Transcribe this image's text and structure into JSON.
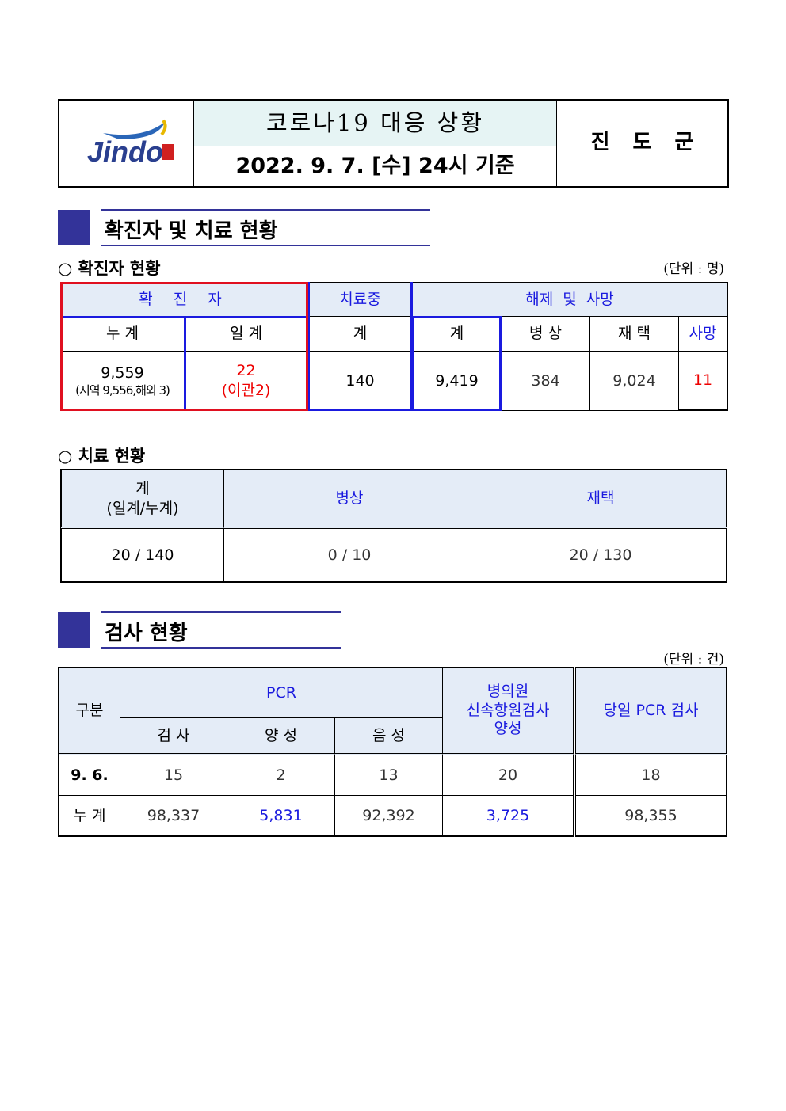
{
  "header": {
    "logo_text": "Jindo",
    "title": "코로나19 대응 상황",
    "date": "2022. 9. 7. [수] 24시 기준",
    "org": "진 도 군"
  },
  "section1": {
    "title": "확진자 및 치료 현황",
    "confirmed": {
      "subtitle": "○ 확진자 현황",
      "unit": "(단위 : 명)",
      "headers": {
        "confirmed": "확 진 자",
        "treating": "치료중",
        "released": "해제 및 사망"
      },
      "subheaders": [
        "누 계",
        "일 계",
        "계",
        "계",
        "병 상",
        "재 택",
        "사망"
      ],
      "values": {
        "cumulative": "9,559",
        "cumulative_note": "(지역 9,556,해외 3)",
        "daily": "22",
        "daily_note": "(이관2)",
        "treating": "140",
        "released_total": "9,419",
        "hospital": "384",
        "home": "9,024",
        "death": "11"
      }
    },
    "treatment": {
      "subtitle": "○ 치료 현황",
      "headers": [
        "계",
        "(일계/누계)",
        "병상",
        "재택"
      ],
      "values": [
        "20 / 140",
        "0 / 10",
        "20 / 130"
      ]
    }
  },
  "section2": {
    "title": "검사 현황",
    "unit": "(단위 : 건)",
    "headers": {
      "category": "구분",
      "pcr": "PCR",
      "pcr_sub": [
        "검 사",
        "양 성",
        "음 성"
      ],
      "rapid": [
        "병의원",
        "신속항원검사",
        "양성"
      ],
      "today_pcr": "당일 PCR 검사"
    },
    "rows": [
      {
        "label": "9. 6.",
        "values": [
          "15",
          "2",
          "13",
          "20",
          "18"
        ]
      },
      {
        "label": "누 계",
        "values": [
          "98,337",
          "5,831",
          "92,392",
          "3,725",
          "98,355"
        ]
      }
    ]
  },
  "colors": {
    "accent": "#333399",
    "header_bg": "#e4ecf7",
    "title_bg": "#e6f4f4",
    "blue_text": "#1a1adf",
    "red": "#e00000"
  }
}
